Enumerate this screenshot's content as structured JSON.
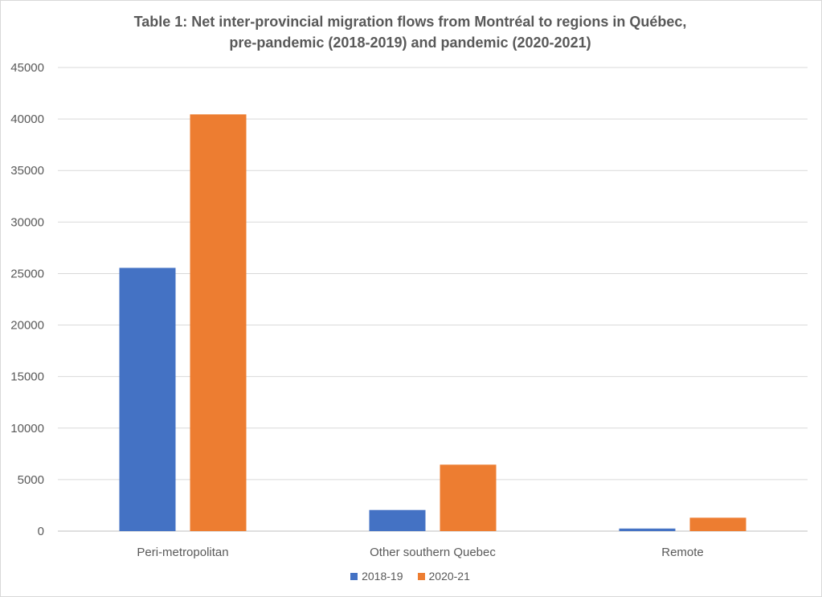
{
  "chart_data": {
    "type": "bar",
    "title_lines": [
      "Table 1: Net inter-provincial migration flows from Montréal to regions in Québec,",
      "pre-pandemic (2018-2019) and pandemic (2020-2021)"
    ],
    "categories": [
      "Peri-metropolitan",
      "Other southern Quebec",
      "Remote"
    ],
    "series": [
      {
        "name": "2018-19",
        "color": "#4472c4",
        "values": [
          25550,
          2050,
          250
        ]
      },
      {
        "name": "2020-21",
        "color": "#ed7d31",
        "values": [
          40450,
          6450,
          1300
        ]
      }
    ],
    "ylim": [
      0,
      45000
    ],
    "yticks": [
      0,
      5000,
      10000,
      15000,
      20000,
      25000,
      30000,
      35000,
      40000,
      45000
    ],
    "grid": true,
    "legend_position": "bottom"
  }
}
